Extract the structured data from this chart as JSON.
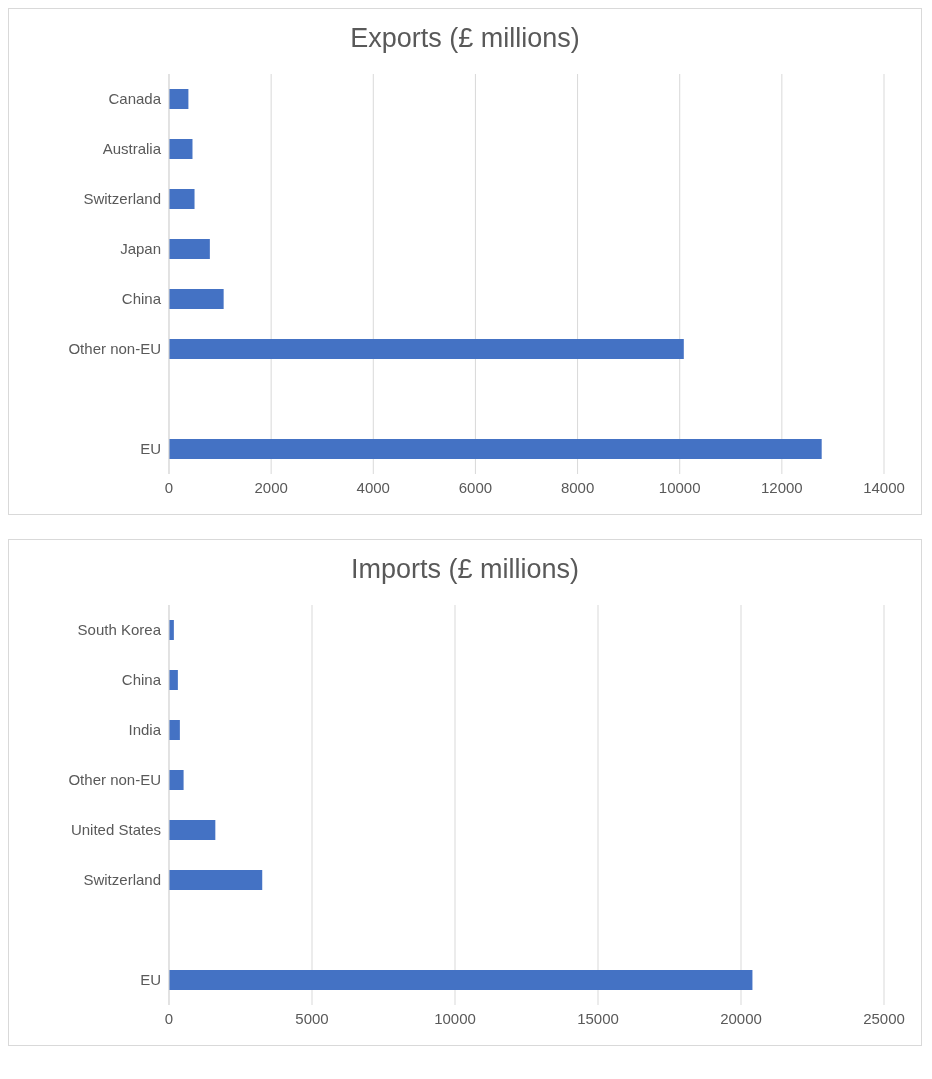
{
  "chart_data": [
    {
      "type": "bar",
      "orientation": "horizontal",
      "title": "Exports (£ millions)",
      "categories": [
        "Canada",
        "Australia",
        "Switzerland",
        "Japan",
        "China",
        "Other non-EU",
        null,
        "EU"
      ],
      "values": [
        380,
        460,
        500,
        800,
        1070,
        10080,
        null,
        12780
      ],
      "color": "#4472c4",
      "xlim": [
        0,
        14000
      ],
      "xticks": [
        0,
        2000,
        4000,
        6000,
        8000,
        10000,
        12000,
        14000
      ],
      "grid": "x"
    },
    {
      "type": "bar",
      "orientation": "horizontal",
      "title": "Imports (£ millions)",
      "categories": [
        "South Korea",
        "China",
        "India",
        "Other non-EU",
        "United States",
        "Switzerland",
        null,
        "EU"
      ],
      "values": [
        170,
        310,
        380,
        510,
        1620,
        3260,
        null,
        20400
      ],
      "color": "#4472c4",
      "xlim": [
        0,
        25000
      ],
      "xticks": [
        0,
        5000,
        10000,
        15000,
        20000,
        25000
      ],
      "grid": "x"
    }
  ]
}
